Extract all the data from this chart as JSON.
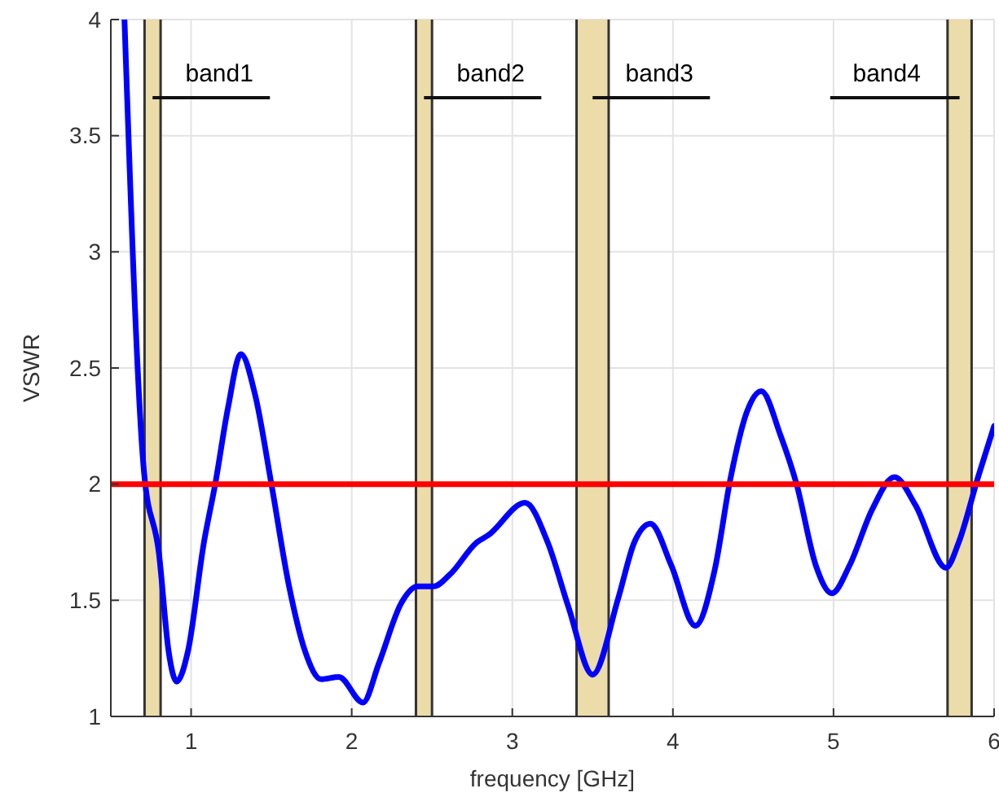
{
  "chart_data": {
    "type": "line",
    "xlabel": "frequency [GHz]",
    "ylabel": "VSWR",
    "xlim": [
      0.5,
      6
    ],
    "ylim": [
      1,
      4
    ],
    "xticks": [
      1,
      2,
      3,
      4,
      5,
      6
    ],
    "yticks": [
      1,
      1.5,
      2,
      2.5,
      3,
      3.5,
      4
    ],
    "grid": true,
    "series": [
      {
        "color": "#0000ff",
        "x": [
          0.585,
          0.707,
          0.8,
          0.86,
          0.91,
          0.98,
          1.08,
          1.15,
          1.23,
          1.31,
          1.4,
          1.5,
          1.61,
          1.71,
          1.81,
          1.92,
          2.07,
          2.17,
          2.31,
          2.41,
          2.51,
          2.61,
          2.78,
          2.85,
          3.08,
          3.22,
          3.35,
          3.5,
          3.66,
          3.76,
          3.86,
          3.99,
          4.14,
          4.26,
          4.36,
          4.46,
          4.55,
          4.67,
          4.77,
          4.89,
          4.99,
          5.1,
          5.24,
          5.38,
          5.51,
          5.7,
          5.78,
          5.9,
          6.0
        ],
        "values": [
          4,
          2.05,
          1.7,
          1.28,
          1.15,
          1.28,
          1.75,
          2.0,
          2.33,
          2.56,
          2.38,
          2.0,
          1.56,
          1.28,
          1.16,
          1.17,
          1.06,
          1.23,
          1.49,
          1.56,
          1.56,
          1.61,
          1.75,
          1.78,
          1.92,
          1.75,
          1.47,
          1.18,
          1.51,
          1.75,
          1.83,
          1.65,
          1.39,
          1.63,
          2.03,
          2.31,
          2.4,
          2.21,
          2.0,
          1.65,
          1.53,
          1.65,
          1.89,
          2.03,
          1.91,
          1.64,
          1.75,
          2.03,
          2.25
        ]
      }
    ],
    "ref_lines": [
      {
        "axis": "y",
        "value": 2,
        "color": "#ff0000"
      }
    ],
    "bands": [
      {
        "axis": "x",
        "from": 0.71,
        "to": 0.81,
        "color": "#ecdcaa",
        "label": "band1"
      },
      {
        "axis": "x",
        "from": 2.4,
        "to": 2.5,
        "color": "#ecdcaa",
        "label": "band2"
      },
      {
        "axis": "x",
        "from": 3.4,
        "to": 3.6,
        "color": "#ecdcaa",
        "label": "band3"
      },
      {
        "axis": "x",
        "from": 5.71,
        "to": 5.86,
        "color": "#ecdcaa",
        "label": "band4"
      }
    ]
  }
}
